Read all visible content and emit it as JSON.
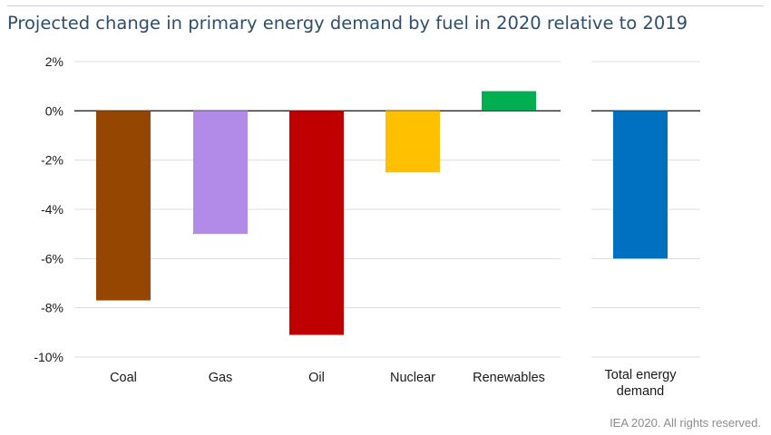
{
  "title": "Projected change in primary energy demand by fuel in 2020 relative to 2019",
  "footer": "IEA 2020. All rights reserved.",
  "chart_data": [
    {
      "type": "bar",
      "categories": [
        "Coal",
        "Gas",
        "Oil",
        "Nuclear",
        "Renewables"
      ],
      "values": [
        -7.7,
        -5.0,
        -9.1,
        -2.5,
        0.8
      ],
      "colors": [
        "#954600",
        "#b28ae8",
        "#c00000",
        "#ffc000",
        "#00b050"
      ],
      "ylim": [
        -10,
        2
      ],
      "yticks": [
        "2%",
        "0%",
        "-2%",
        "-4%",
        "-6%",
        "-8%",
        "-10%"
      ],
      "grid": true
    },
    {
      "type": "bar",
      "categories": [
        [
          "Total energy",
          "demand"
        ]
      ],
      "values": [
        -6.0
      ],
      "colors": [
        "#0070c0"
      ],
      "ylim": [
        -10,
        2
      ],
      "grid": true
    }
  ]
}
